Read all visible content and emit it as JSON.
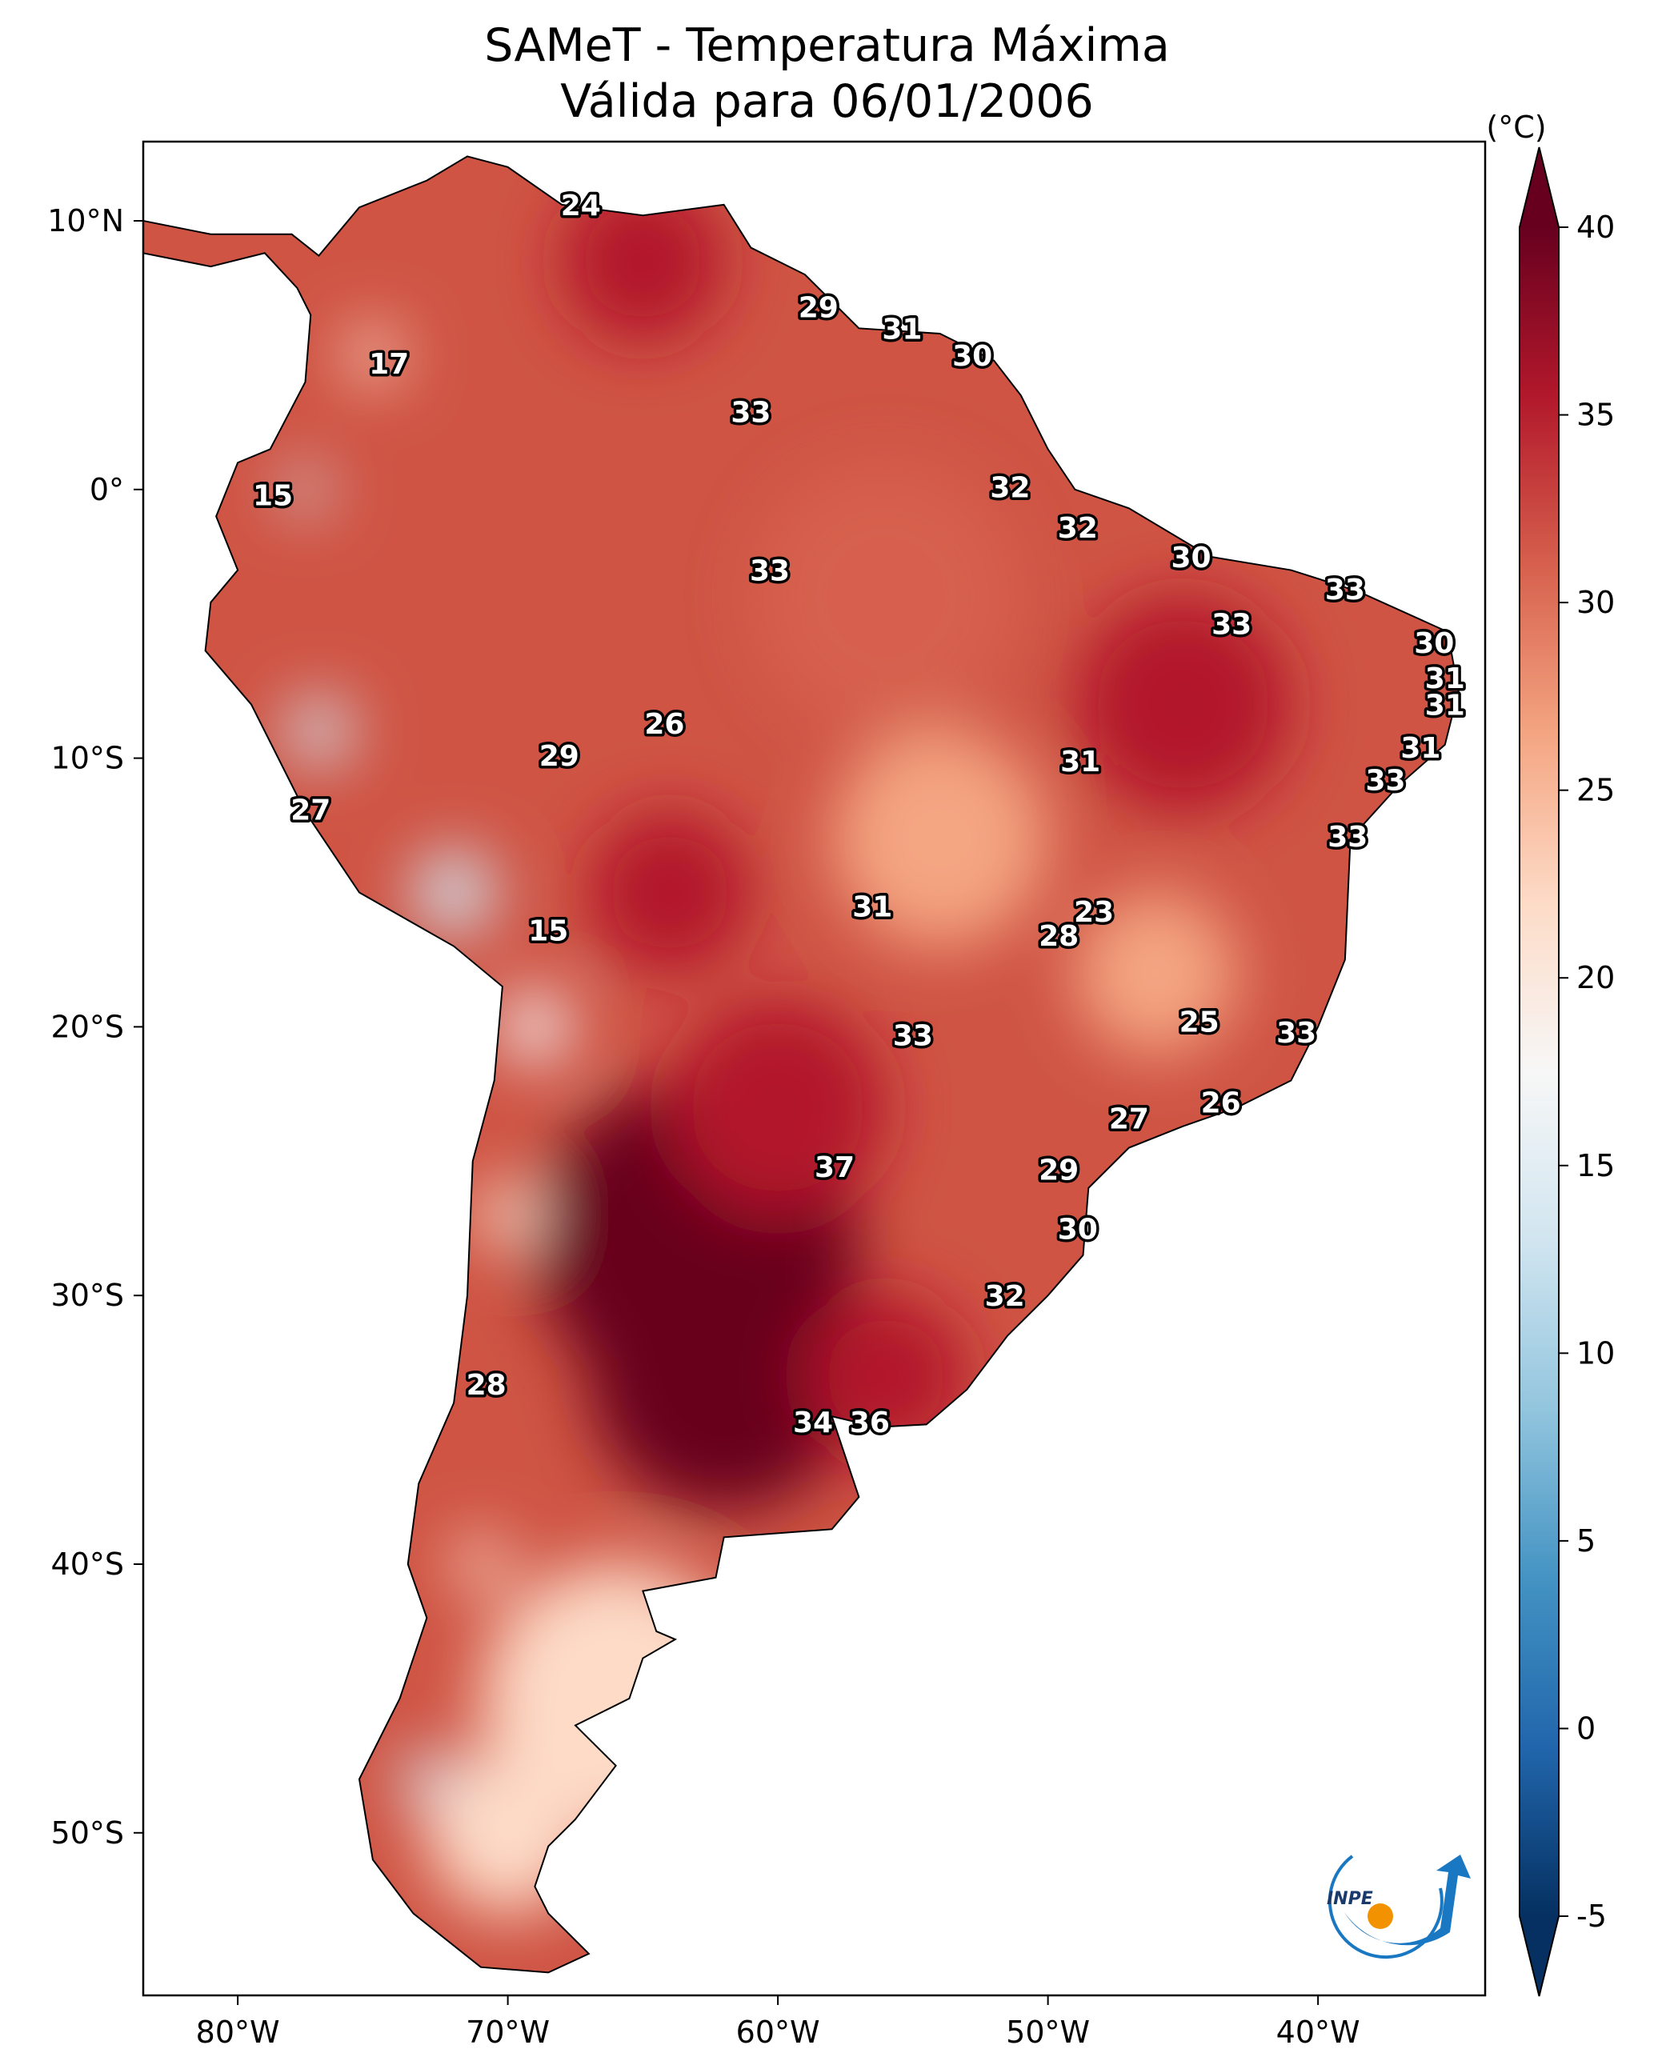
{
  "title": {
    "line1": "SAMeT - Temperatura Máxima",
    "line2": "Válida para 06/01/2006"
  },
  "colorbar": {
    "unit": "(°C)",
    "min": -5,
    "max": 40,
    "extend": "both",
    "ticks": [
      "40",
      "35",
      "30",
      "25",
      "20",
      "15",
      "10",
      "5",
      "0",
      "-5"
    ],
    "tick_values": [
      40,
      35,
      30,
      25,
      20,
      15,
      10,
      5,
      0,
      -5
    ],
    "colormap": [
      "#053061",
      "#2166ac",
      "#4393c3",
      "#92c5de",
      "#d1e5f0",
      "#f7f7f7",
      "#fddbc7",
      "#f4a582",
      "#d6604d",
      "#b2182b",
      "#67001f"
    ]
  },
  "axes": {
    "lon_range": [
      -83.5,
      -33.8
    ],
    "lat_range": [
      -56,
      13
    ],
    "lon_ticks": [
      {
        "v": -80,
        "t": "80°W"
      },
      {
        "v": -70,
        "t": "70°W"
      },
      {
        "v": -60,
        "t": "60°W"
      },
      {
        "v": -50,
        "t": "50°W"
      },
      {
        "v": -40,
        "t": "40°W"
      }
    ],
    "lat_ticks": [
      {
        "v": 10,
        "t": "10°N"
      },
      {
        "v": 0,
        "t": "0°"
      },
      {
        "v": -10,
        "t": "10°S"
      },
      {
        "v": -20,
        "t": "20°S"
      },
      {
        "v": -30,
        "t": "30°S"
      },
      {
        "v": -40,
        "t": "40°S"
      },
      {
        "v": -50,
        "t": "50°S"
      }
    ]
  },
  "point_labels": [
    {
      "t": "24",
      "lon": -67.3,
      "lat": 10.6
    },
    {
      "t": "29",
      "lon": -58.5,
      "lat": 6.8
    },
    {
      "t": "31",
      "lon": -55.4,
      "lat": 6.0
    },
    {
      "t": "30",
      "lon": -52.8,
      "lat": 5.0
    },
    {
      "t": "17",
      "lon": -74.4,
      "lat": 4.7
    },
    {
      "t": "33",
      "lon": -61.0,
      "lat": 2.9
    },
    {
      "t": "15",
      "lon": -78.7,
      "lat": -0.2
    },
    {
      "t": "32",
      "lon": -51.4,
      "lat": 0.1
    },
    {
      "t": "32",
      "lon": -48.9,
      "lat": -1.4
    },
    {
      "t": "33",
      "lon": -60.3,
      "lat": -3.0
    },
    {
      "t": "30",
      "lon": -44.7,
      "lat": -2.5
    },
    {
      "t": "33",
      "lon": -39.0,
      "lat": -3.7
    },
    {
      "t": "33",
      "lon": -43.2,
      "lat": -5.0
    },
    {
      "t": "30",
      "lon": -35.7,
      "lat": -5.7
    },
    {
      "t": "31",
      "lon": -35.3,
      "lat": -7.0
    },
    {
      "t": "31",
      "lon": -35.3,
      "lat": -8.0
    },
    {
      "t": "26",
      "lon": -64.2,
      "lat": -8.7
    },
    {
      "t": "29",
      "lon": -68.1,
      "lat": -9.9
    },
    {
      "t": "31",
      "lon": -36.2,
      "lat": -9.6
    },
    {
      "t": "31",
      "lon": -48.8,
      "lat": -10.1
    },
    {
      "t": "33",
      "lon": -37.5,
      "lat": -10.8
    },
    {
      "t": "27",
      "lon": -77.3,
      "lat": -11.9
    },
    {
      "t": "33",
      "lon": -38.9,
      "lat": -12.9
    },
    {
      "t": "31",
      "lon": -56.5,
      "lat": -15.5
    },
    {
      "t": "23",
      "lon": -48.3,
      "lat": -15.7
    },
    {
      "t": "15",
      "lon": -68.5,
      "lat": -16.4
    },
    {
      "t": "28",
      "lon": -49.6,
      "lat": -16.6
    },
    {
      "t": "25",
      "lon": -44.4,
      "lat": -19.8
    },
    {
      "t": "33",
      "lon": -55.0,
      "lat": -20.3
    },
    {
      "t": "33",
      "lon": -40.8,
      "lat": -20.2
    },
    {
      "t": "26",
      "lon": -43.6,
      "lat": -22.8
    },
    {
      "t": "27",
      "lon": -47.0,
      "lat": -23.4
    },
    {
      "t": "37",
      "lon": -57.9,
      "lat": -25.2
    },
    {
      "t": "29",
      "lon": -49.6,
      "lat": -25.3
    },
    {
      "t": "30",
      "lon": -48.9,
      "lat": -27.5
    },
    {
      "t": "32",
      "lon": -51.6,
      "lat": -30.0
    },
    {
      "t": "28",
      "lon": -70.8,
      "lat": -33.3
    },
    {
      "t": "34",
      "lon": -58.7,
      "lat": -34.7
    },
    {
      "t": "36",
      "lon": -56.6,
      "lat": -34.7
    }
  ],
  "logo": {
    "text": "INPE",
    "colors": [
      "#1a78c2",
      "#f39200"
    ]
  }
}
